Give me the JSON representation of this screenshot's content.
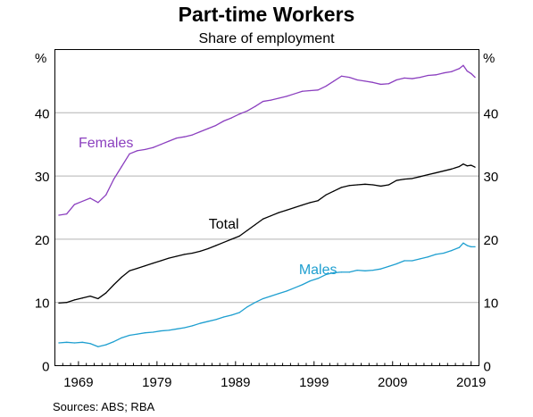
{
  "chart_data": {
    "type": "line",
    "title": "Part-time Workers",
    "subtitle": "Share of employment",
    "unit_left": "%",
    "unit_right": "%",
    "source": "Sources:   ABS; RBA",
    "xlim": [
      1966,
      2020
    ],
    "ylim": [
      0,
      50
    ],
    "yticks": [
      0,
      10,
      20,
      30,
      40
    ],
    "xticks": [
      1969,
      1979,
      1989,
      1999,
      2009,
      2019
    ],
    "grid": true,
    "colors": {
      "Females": "#8b3fbf",
      "Total": "#000000",
      "Males": "#1e9fd0",
      "grid": "#b3b3b3"
    },
    "series": [
      {
        "name": "Females",
        "label_at": [
          1972.5,
          34.5
        ],
        "points": [
          [
            1966.5,
            23.8
          ],
          [
            1967.5,
            24.0
          ],
          [
            1968.5,
            25.5
          ],
          [
            1969.5,
            26.0
          ],
          [
            1970.5,
            26.5
          ],
          [
            1971.5,
            25.8
          ],
          [
            1972.5,
            27.0
          ],
          [
            1973.5,
            29.5
          ],
          [
            1974.5,
            31.5
          ],
          [
            1975.5,
            33.5
          ],
          [
            1976.5,
            34.0
          ],
          [
            1977.5,
            34.2
          ],
          [
            1978.5,
            34.5
          ],
          [
            1979.5,
            35.0
          ],
          [
            1980.5,
            35.5
          ],
          [
            1981.5,
            36.0
          ],
          [
            1982.5,
            36.2
          ],
          [
            1983.5,
            36.5
          ],
          [
            1984.5,
            37.0
          ],
          [
            1985.5,
            37.5
          ],
          [
            1986.5,
            38.0
          ],
          [
            1987.5,
            38.7
          ],
          [
            1988.5,
            39.2
          ],
          [
            1989.5,
            39.8
          ],
          [
            1990.5,
            40.3
          ],
          [
            1991.5,
            41.0
          ],
          [
            1992.5,
            41.8
          ],
          [
            1993.5,
            42.0
          ],
          [
            1994.5,
            42.3
          ],
          [
            1995.5,
            42.6
          ],
          [
            1996.5,
            43.0
          ],
          [
            1997.5,
            43.4
          ],
          [
            1998.5,
            43.5
          ],
          [
            1999.5,
            43.6
          ],
          [
            2000.5,
            44.2
          ],
          [
            2001.5,
            45.0
          ],
          [
            2002.5,
            45.8
          ],
          [
            2003.5,
            45.6
          ],
          [
            2004.5,
            45.2
          ],
          [
            2005.5,
            45.0
          ],
          [
            2006.5,
            44.8
          ],
          [
            2007.5,
            44.5
          ],
          [
            2008.5,
            44.6
          ],
          [
            2009.5,
            45.2
          ],
          [
            2010.5,
            45.5
          ],
          [
            2011.5,
            45.4
          ],
          [
            2012.5,
            45.6
          ],
          [
            2013.5,
            45.9
          ],
          [
            2014.5,
            46.0
          ],
          [
            2015.5,
            46.3
          ],
          [
            2016.5,
            46.5
          ],
          [
            2017.5,
            47.0
          ],
          [
            2018.0,
            47.5
          ],
          [
            2018.5,
            46.6
          ],
          [
            2019.0,
            46.2
          ],
          [
            2019.5,
            45.6
          ]
        ]
      },
      {
        "name": "Total",
        "label_at": [
          1987.5,
          21.7
        ],
        "points": [
          [
            1966.5,
            9.9
          ],
          [
            1967.5,
            10.0
          ],
          [
            1968.5,
            10.4
          ],
          [
            1969.5,
            10.7
          ],
          [
            1970.5,
            11.0
          ],
          [
            1971.5,
            10.6
          ],
          [
            1972.5,
            11.5
          ],
          [
            1973.5,
            12.8
          ],
          [
            1974.5,
            14.0
          ],
          [
            1975.5,
            15.0
          ],
          [
            1976.5,
            15.4
          ],
          [
            1977.5,
            15.8
          ],
          [
            1978.5,
            16.2
          ],
          [
            1979.5,
            16.6
          ],
          [
            1980.5,
            17.0
          ],
          [
            1981.5,
            17.3
          ],
          [
            1982.5,
            17.6
          ],
          [
            1983.5,
            17.8
          ],
          [
            1984.5,
            18.1
          ],
          [
            1985.5,
            18.5
          ],
          [
            1986.5,
            19.0
          ],
          [
            1987.5,
            19.5
          ],
          [
            1988.5,
            20.0
          ],
          [
            1989.5,
            20.5
          ],
          [
            1990.5,
            21.4
          ],
          [
            1991.5,
            22.3
          ],
          [
            1992.5,
            23.2
          ],
          [
            1993.5,
            23.7
          ],
          [
            1994.5,
            24.2
          ],
          [
            1995.5,
            24.6
          ],
          [
            1996.5,
            25.0
          ],
          [
            1997.5,
            25.4
          ],
          [
            1998.5,
            25.8
          ],
          [
            1999.5,
            26.1
          ],
          [
            2000.5,
            27.0
          ],
          [
            2001.5,
            27.6
          ],
          [
            2002.5,
            28.2
          ],
          [
            2003.5,
            28.5
          ],
          [
            2004.5,
            28.6
          ],
          [
            2005.5,
            28.7
          ],
          [
            2006.5,
            28.6
          ],
          [
            2007.5,
            28.4
          ],
          [
            2008.5,
            28.6
          ],
          [
            2009.5,
            29.3
          ],
          [
            2010.5,
            29.5
          ],
          [
            2011.5,
            29.6
          ],
          [
            2012.5,
            29.9
          ],
          [
            2013.5,
            30.2
          ],
          [
            2014.5,
            30.5
          ],
          [
            2015.5,
            30.8
          ],
          [
            2016.5,
            31.1
          ],
          [
            2017.5,
            31.5
          ],
          [
            2018.0,
            31.9
          ],
          [
            2018.5,
            31.6
          ],
          [
            2019.0,
            31.7
          ],
          [
            2019.5,
            31.4
          ]
        ]
      },
      {
        "name": "Males",
        "label_at": [
          1999.5,
          14.5
        ],
        "points": [
          [
            1966.5,
            3.6
          ],
          [
            1967.5,
            3.7
          ],
          [
            1968.5,
            3.6
          ],
          [
            1969.5,
            3.7
          ],
          [
            1970.5,
            3.5
          ],
          [
            1971.5,
            3.0
          ],
          [
            1972.5,
            3.3
          ],
          [
            1973.5,
            3.8
          ],
          [
            1974.5,
            4.4
          ],
          [
            1975.5,
            4.8
          ],
          [
            1976.5,
            5.0
          ],
          [
            1977.5,
            5.2
          ],
          [
            1978.5,
            5.3
          ],
          [
            1979.5,
            5.5
          ],
          [
            1980.5,
            5.6
          ],
          [
            1981.5,
            5.8
          ],
          [
            1982.5,
            6.0
          ],
          [
            1983.5,
            6.3
          ],
          [
            1984.5,
            6.7
          ],
          [
            1985.5,
            7.0
          ],
          [
            1986.5,
            7.3
          ],
          [
            1987.5,
            7.7
          ],
          [
            1988.5,
            8.0
          ],
          [
            1989.5,
            8.4
          ],
          [
            1990.5,
            9.3
          ],
          [
            1991.5,
            10.0
          ],
          [
            1992.5,
            10.6
          ],
          [
            1993.5,
            11.0
          ],
          [
            1994.5,
            11.4
          ],
          [
            1995.5,
            11.8
          ],
          [
            1996.5,
            12.3
          ],
          [
            1997.5,
            12.8
          ],
          [
            1998.5,
            13.4
          ],
          [
            1999.5,
            13.8
          ],
          [
            2000.5,
            14.4
          ],
          [
            2001.5,
            14.7
          ],
          [
            2002.5,
            14.8
          ],
          [
            2003.5,
            14.8
          ],
          [
            2004.5,
            15.1
          ],
          [
            2005.5,
            15.0
          ],
          [
            2006.5,
            15.1
          ],
          [
            2007.5,
            15.3
          ],
          [
            2008.5,
            15.7
          ],
          [
            2009.5,
            16.1
          ],
          [
            2010.5,
            16.6
          ],
          [
            2011.5,
            16.6
          ],
          [
            2012.5,
            16.9
          ],
          [
            2013.5,
            17.2
          ],
          [
            2014.5,
            17.6
          ],
          [
            2015.5,
            17.8
          ],
          [
            2016.5,
            18.2
          ],
          [
            2017.5,
            18.7
          ],
          [
            2018.0,
            19.4
          ],
          [
            2018.5,
            19.0
          ],
          [
            2019.0,
            18.8
          ],
          [
            2019.5,
            18.8
          ]
        ]
      }
    ]
  }
}
